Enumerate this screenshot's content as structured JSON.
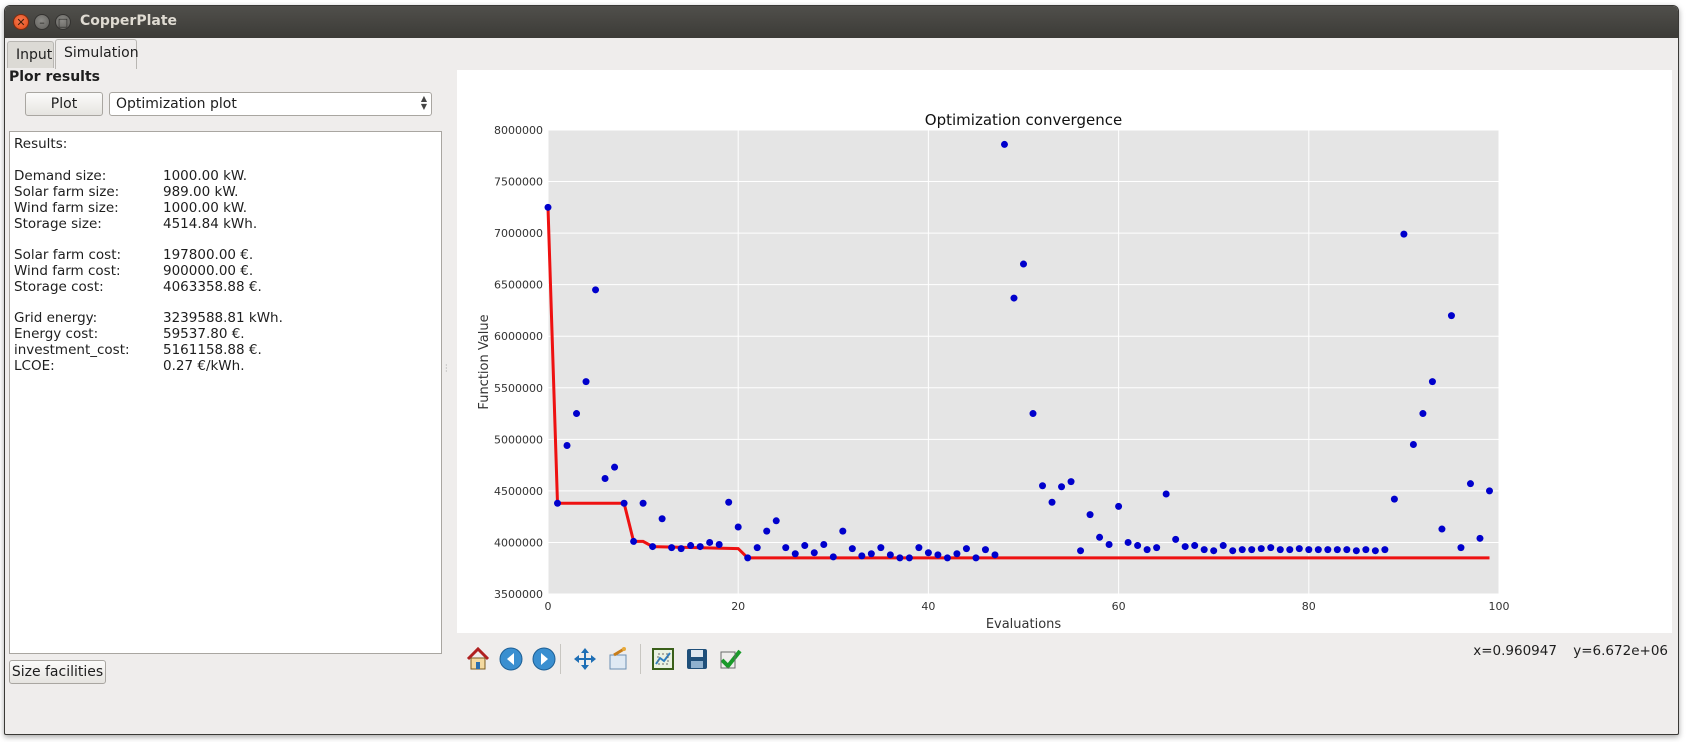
{
  "window": {
    "title": "CopperPlate"
  },
  "tabs": [
    {
      "label": "Input"
    },
    {
      "label": "Simulation"
    }
  ],
  "left": {
    "group_title": "Plor results",
    "plot_button": "Plot",
    "plot_select": {
      "selected": "Optimization plot"
    },
    "results": {
      "title": "Results:",
      "blocks": [
        [
          {
            "key": "Demand size:",
            "value": "1000.00 kW."
          },
          {
            "key": "Solar farm size:",
            "value": "989.00 kW."
          },
          {
            "key": "Wind farm size:",
            "value": "1000.00 kW."
          },
          {
            "key": "Storage size:",
            "value": "4514.84 kWh."
          }
        ],
        [
          {
            "key": "Solar farm cost:",
            "value": "197800.00 €."
          },
          {
            "key": "Wind farm cost:",
            "value": "900000.00 €."
          },
          {
            "key": "Storage cost:",
            "value": "4063358.88 €."
          }
        ],
        [
          {
            "key": "Grid energy:",
            "value": "3239588.81 kWh."
          },
          {
            "key": "Energy cost:",
            "value": "59537.80 €."
          },
          {
            "key": "investment_cost:",
            "value": "5161158.88 €."
          },
          {
            "key": "LCOE:",
            "value": "0.27 €/kWh."
          }
        ]
      ]
    },
    "size_button": "Size facilities"
  },
  "toolbar": {
    "tools": [
      {
        "name": "home-icon"
      },
      {
        "name": "back-icon"
      },
      {
        "name": "forward-icon"
      },
      {
        "name": "pan-icon"
      },
      {
        "name": "zoom-icon"
      },
      {
        "name": "subplots-icon"
      },
      {
        "name": "save-icon"
      },
      {
        "name": "edit-check-icon"
      }
    ],
    "coords": {
      "x": "x=0.960947",
      "y": "y=6.672e+06"
    }
  },
  "colors": {
    "points": "#0000cc",
    "line": "#ee1111",
    "plot_bg": "#e5e5e5",
    "grid": "#ffffff"
  },
  "chart_data": {
    "type": "scatter",
    "title": "Optimization convergence",
    "xlabel": "Evaluations",
    "ylabel": "Function Value",
    "xlim": [
      0,
      100
    ],
    "ylim": [
      3500000,
      8000000
    ],
    "xticks": [
      "0",
      "20",
      "40",
      "60",
      "80",
      "100"
    ],
    "yticks": [
      "3500000",
      "4000000",
      "4500000",
      "5000000",
      "5500000",
      "6000000",
      "6500000",
      "7000000",
      "7500000",
      "8000000"
    ],
    "grid": true,
    "series": [
      {
        "type": "scatter",
        "x": [
          0,
          1,
          2,
          3,
          4,
          5,
          6,
          7,
          8,
          9,
          10,
          11,
          12,
          13,
          14,
          15,
          16,
          17,
          18,
          19,
          20,
          21,
          22,
          23,
          24,
          25,
          26,
          27,
          28,
          29,
          30,
          31,
          32,
          33,
          34,
          35,
          36,
          37,
          38,
          39,
          40,
          41,
          42,
          43,
          44,
          45,
          46,
          47,
          48,
          49,
          50,
          51,
          52,
          53,
          54,
          55,
          56,
          57,
          58,
          59,
          60,
          61,
          62,
          63,
          64,
          65,
          66,
          67,
          68,
          69,
          70,
          71,
          72,
          73,
          74,
          75,
          76,
          77,
          78,
          79,
          80,
          81,
          82,
          83,
          84,
          85,
          86,
          87,
          88,
          89,
          90,
          91,
          92,
          93,
          94,
          95,
          96,
          97,
          98,
          99
        ],
        "y": [
          7250000,
          4380000,
          4940000,
          5250000,
          5560000,
          6450000,
          4620000,
          4730000,
          4380000,
          4010000,
          4380000,
          3960000,
          4230000,
          3950000,
          3940000,
          3970000,
          3960000,
          4000000,
          3980000,
          4390000,
          4150000,
          3850000,
          3950000,
          4110000,
          4210000,
          3950000,
          3890000,
          3970000,
          3900000,
          3980000,
          3860000,
          4110000,
          3940000,
          3870000,
          3890000,
          3950000,
          3880000,
          3850000,
          3850000,
          3950000,
          3900000,
          3880000,
          3850000,
          3890000,
          3940000,
          3850000,
          3930000,
          3880000,
          7860000,
          6370000,
          6700000,
          5250000,
          4550000,
          4390000,
          4540000,
          4590000,
          3920000,
          4270000,
          4050000,
          3980000,
          4350000,
          4000000,
          3970000,
          3930000,
          3950000,
          4470000,
          4030000,
          3960000,
          3970000,
          3930000,
          3920000,
          3970000,
          3920000,
          3930000,
          3930000,
          3940000,
          3950000,
          3930000,
          3930000,
          3940000,
          3930000,
          3930000,
          3930000,
          3930000,
          3930000,
          3920000,
          3930000,
          3920000,
          3930000,
          4420000,
          6990000,
          4950000,
          5250000,
          5560000,
          4130000,
          6200000,
          3950000,
          4570000,
          4040000,
          4500000
        ]
      },
      {
        "type": "line",
        "x": [
          0,
          1,
          8,
          9,
          10,
          11,
          20,
          21,
          99
        ],
        "y": [
          7250000,
          4380000,
          4380000,
          4010000,
          4010000,
          3960000,
          3940000,
          3850000,
          3850000
        ]
      }
    ]
  }
}
